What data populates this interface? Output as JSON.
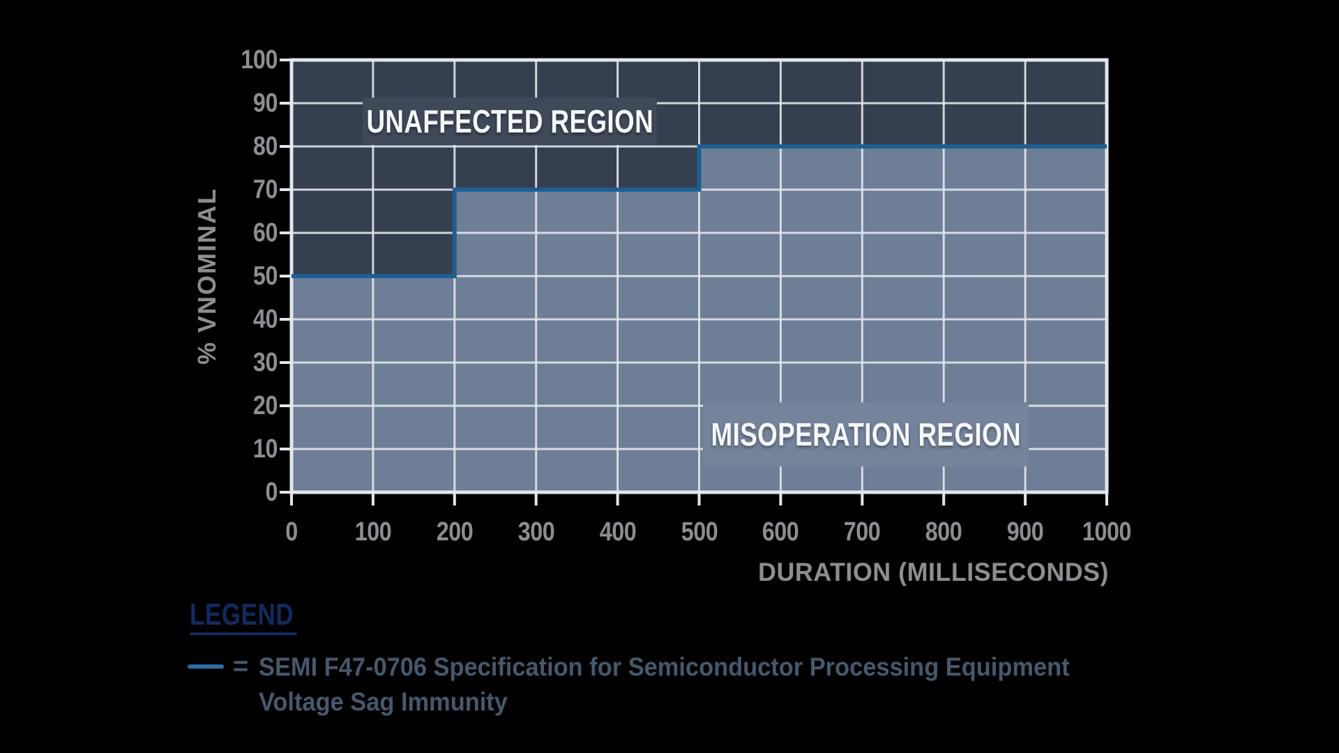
{
  "chart_data": {
    "type": "area-step",
    "title": "",
    "xlabel": "DURATION (MILLISECONDS)",
    "ylabel": "% VNOMINAL",
    "xlim": [
      0,
      1000
    ],
    "ylim": [
      0,
      100
    ],
    "xticks": [
      0,
      100,
      200,
      300,
      400,
      500,
      600,
      700,
      800,
      900,
      1000
    ],
    "yticks": [
      0,
      10,
      20,
      30,
      40,
      50,
      60,
      70,
      80,
      90,
      100
    ],
    "grid": true,
    "series": [
      {
        "name": "SEMI F47-0706 Specification for Semiconductor Processing Equipment Voltage Sag Immunity",
        "points": [
          [
            0,
            50
          ],
          [
            200,
            50
          ],
          [
            200,
            70
          ],
          [
            500,
            70
          ],
          [
            500,
            80
          ],
          [
            1000,
            80
          ]
        ]
      }
    ],
    "regions": [
      {
        "label": "UNAFFECTED REGION",
        "position": "above-curve"
      },
      {
        "label": "MISOPERATION REGION",
        "position": "below-curve"
      }
    ]
  },
  "legend": {
    "title": "LEGEND",
    "items": [
      {
        "swatch": "curve-line",
        "equals": "=",
        "label_line1": "SEMI F47-0706 Specification for Semiconductor Processing Equipment",
        "label_line2": "Voltage Sag Immunity"
      }
    ]
  },
  "colors": {
    "background": "#000000",
    "unaffected_fill": "#363f50",
    "misoperation_fill": "#6e7e96",
    "unaffected_label_bg": "#3f4959",
    "misoperation_label_bg": "#75849b",
    "curve": "#1e5f91",
    "grid": "#e2e6ed",
    "axis": "#e2e6ed",
    "tick_label": "#8b8e93",
    "legend_title": "#122a5e",
    "legend_text": "#46586c",
    "legend_swatch": "#2e6ea6"
  }
}
